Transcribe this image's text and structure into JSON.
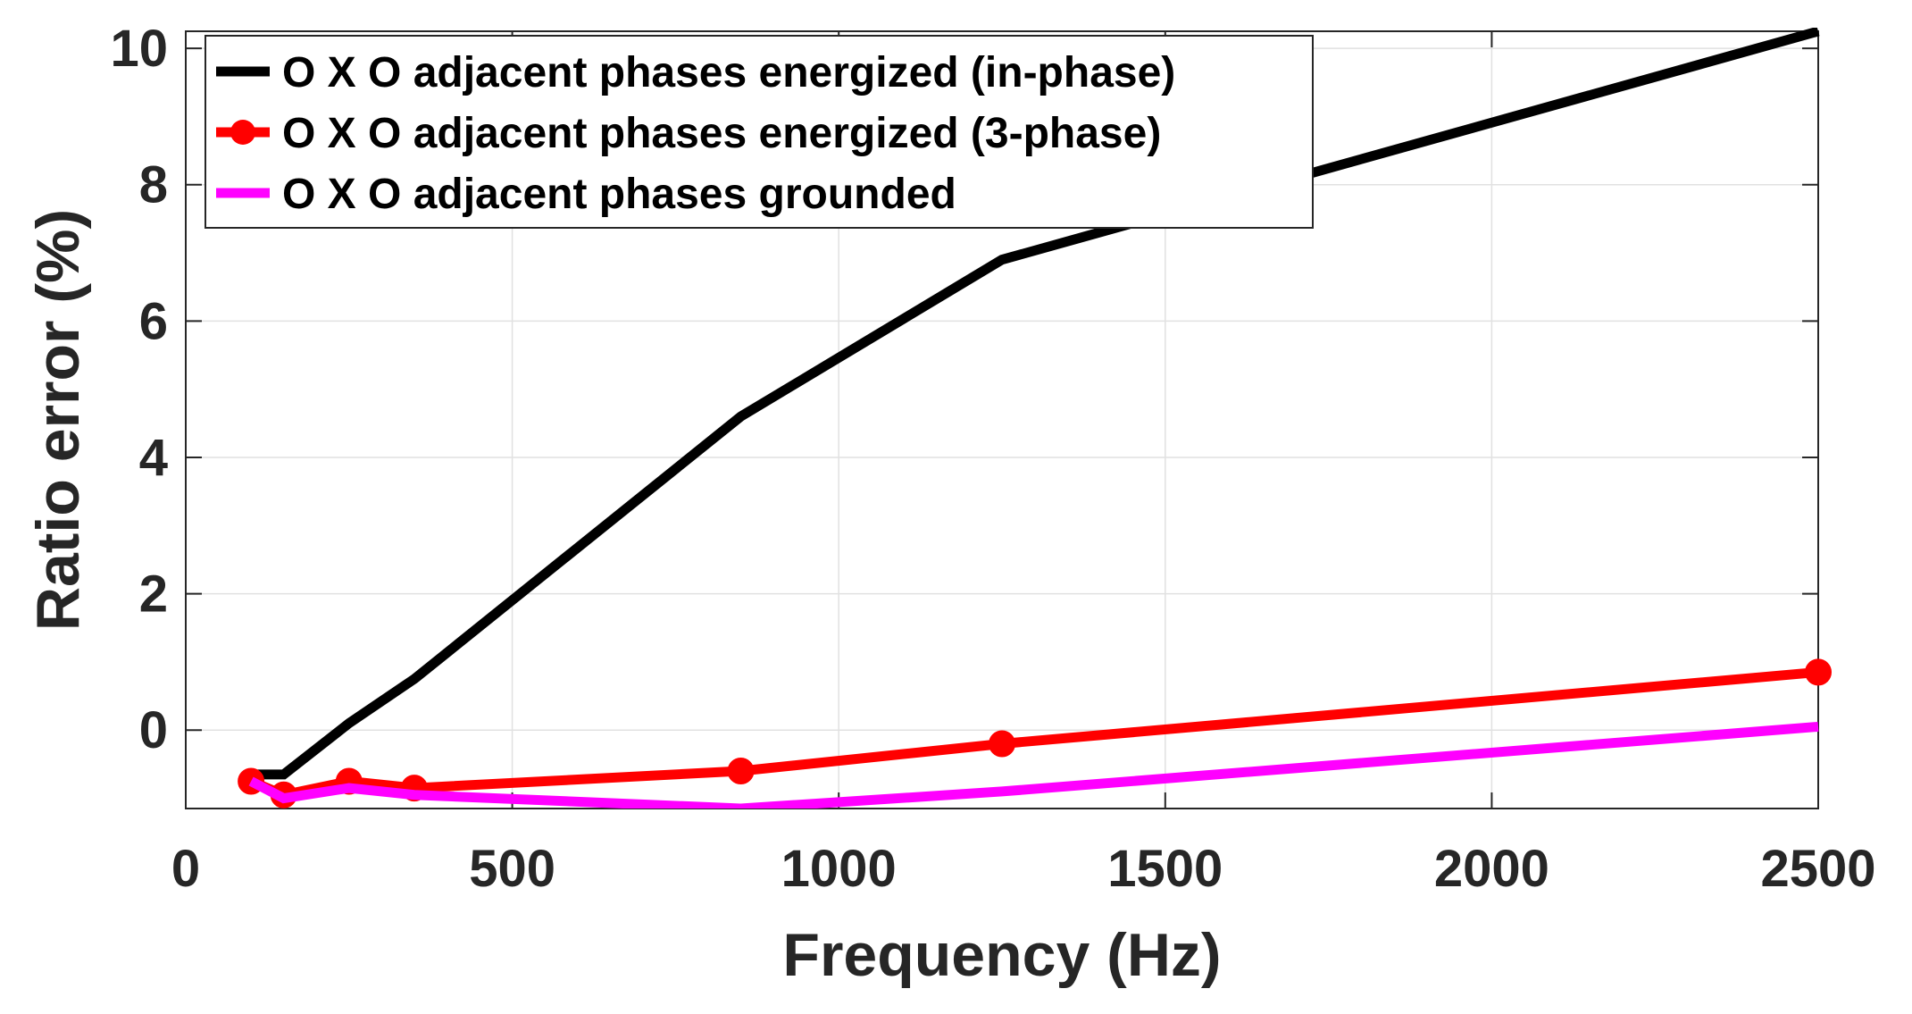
{
  "chart_data": {
    "type": "line",
    "xlabel": "Frequency (Hz)",
    "ylabel": "Ratio error (%)",
    "xlim": [
      0,
      2500
    ],
    "ylim": [
      -1.15,
      10.25
    ],
    "xticks": [
      0,
      500,
      1000,
      1500,
      2000,
      2500
    ],
    "yticks": [
      0,
      2,
      4,
      6,
      8,
      10
    ],
    "grid": true,
    "legend_position": "top-left",
    "series": [
      {
        "name": "O X O adjacent phases energized (in-phase)",
        "color": "#000000",
        "marker": "none",
        "x": [
          100,
          150,
          250,
          350,
          850,
          1250,
          2500
        ],
        "y": [
          -0.65,
          -0.65,
          0.1,
          0.75,
          4.6,
          6.9,
          10.25
        ]
      },
      {
        "name": "O X O adjacent phases energized (3-phase)",
        "color": "#ff0000",
        "marker": "circle",
        "x": [
          100,
          150,
          250,
          350,
          850,
          1250,
          2500
        ],
        "y": [
          -0.75,
          -0.95,
          -0.75,
          -0.85,
          -0.6,
          -0.2,
          0.85
        ]
      },
      {
        "name": "O X O adjacent phases grounded",
        "color": "#ff00ff",
        "marker": "none",
        "x": [
          100,
          150,
          250,
          350,
          850,
          1250,
          2500
        ],
        "y": [
          -0.75,
          -1.0,
          -0.85,
          -0.95,
          -1.15,
          -0.9,
          0.05
        ]
      }
    ]
  }
}
